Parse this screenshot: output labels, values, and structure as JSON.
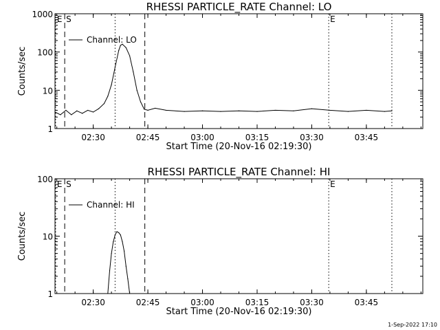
{
  "footer": "1-Sep-2022 17:10",
  "chart_data": [
    {
      "type": "line",
      "title": "RHESSI PARTICLE_RATE Channel: LO",
      "xlabel": "Start Time (20-Nov-16 02:19:30)",
      "ylabel": "Counts/sec",
      "xscale": "time",
      "xlim": [
        "02:19:30",
        "04:00:30"
      ],
      "xticks": [
        "02:30",
        "02:45",
        "03:00",
        "03:15",
        "03:30",
        "03:45"
      ],
      "yscale": "log",
      "ylim": [
        1,
        1000
      ],
      "yticks": [
        "1",
        "10",
        "100",
        "1000"
      ],
      "legend": {
        "position": "top-left",
        "entries": [
          "Channel: LO"
        ]
      },
      "markers": [
        {
          "label": "E",
          "x": "02:19:40",
          "style": "dotted"
        },
        {
          "label": "S",
          "x": "02:22:10",
          "style": "dashed"
        },
        {
          "label": "",
          "x": "02:36:00",
          "style": "dotted"
        },
        {
          "label": "",
          "x": "02:44:10",
          "style": "dashed"
        },
        {
          "label": "E",
          "x": "03:34:40",
          "style": "dotted"
        },
        {
          "label": "",
          "x": "03:52:00",
          "style": "dotted"
        }
      ],
      "series": [
        {
          "name": "Channel: LO",
          "x": [
            "02:19:30",
            "02:21:00",
            "02:22:30",
            "02:24:00",
            "02:25:30",
            "02:27:00",
            "02:28:30",
            "02:30:00",
            "02:31:30",
            "02:33:00",
            "02:34:00",
            "02:35:00",
            "02:36:00",
            "02:37:00",
            "02:37:30",
            "02:38:00",
            "02:39:00",
            "02:40:00",
            "02:41:00",
            "02:42:00",
            "02:43:00",
            "02:44:00",
            "02:45:00",
            "02:47:00",
            "02:50:00",
            "02:55:00",
            "03:00:00",
            "03:05:00",
            "03:10:00",
            "03:15:00",
            "03:20:00",
            "03:25:00",
            "03:30:00",
            "03:35:00",
            "03:40:00",
            "03:45:00",
            "03:50:00",
            "03:52:00"
          ],
          "y": [
            2.7,
            2.3,
            3.0,
            2.3,
            2.9,
            2.5,
            3.0,
            2.7,
            3.3,
            4.5,
            7,
            14,
            40,
            110,
            150,
            160,
            130,
            80,
            30,
            10,
            5,
            3.2,
            3.0,
            3.4,
            3.0,
            2.8,
            2.9,
            2.8,
            2.9,
            2.8,
            3.0,
            2.9,
            3.3,
            3.0,
            2.8,
            3.0,
            2.8,
            2.9
          ]
        }
      ]
    },
    {
      "type": "line",
      "title": "RHESSI PARTICLE_RATE Channel: HI",
      "xlabel": "Start Time (20-Nov-16 02:19:30)",
      "ylabel": "Counts/sec",
      "xscale": "time",
      "xlim": [
        "02:19:30",
        "04:00:30"
      ],
      "xticks": [
        "02:30",
        "02:45",
        "03:00",
        "03:15",
        "03:30",
        "03:45"
      ],
      "yscale": "log",
      "ylim": [
        1,
        100
      ],
      "yticks": [
        "1",
        "10",
        "100"
      ],
      "legend": {
        "position": "top-left",
        "entries": [
          "Channel: HI"
        ]
      },
      "markers": [
        {
          "label": "E",
          "x": "02:19:40",
          "style": "dotted"
        },
        {
          "label": "S",
          "x": "02:22:10",
          "style": "dashed"
        },
        {
          "label": "",
          "x": "02:36:00",
          "style": "dotted"
        },
        {
          "label": "",
          "x": "02:44:10",
          "style": "dashed"
        },
        {
          "label": "E",
          "x": "03:34:40",
          "style": "dotted"
        },
        {
          "label": "",
          "x": "03:52:00",
          "style": "dotted"
        }
      ],
      "series": [
        {
          "name": "Channel: HI",
          "x": [
            "02:34:00",
            "02:34:30",
            "02:35:00",
            "02:35:30",
            "02:36:00",
            "02:36:30",
            "02:37:00",
            "02:37:30",
            "02:38:00",
            "02:38:30",
            "02:39:00",
            "02:39:30",
            "02:40:00"
          ],
          "y": [
            1.0,
            2.5,
            5.0,
            8.0,
            10.5,
            12.0,
            11.5,
            10.5,
            8.0,
            5.5,
            3.0,
            1.8,
            1.0
          ]
        }
      ]
    }
  ]
}
